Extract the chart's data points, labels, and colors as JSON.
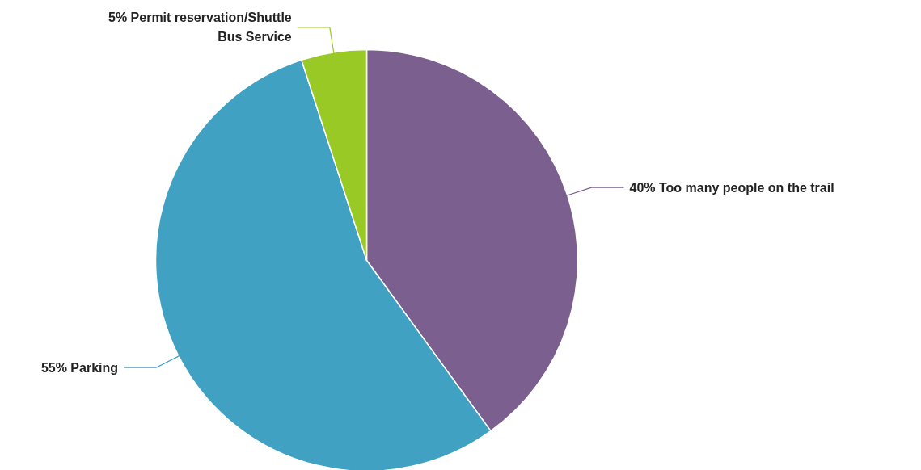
{
  "chart_data": {
    "type": "pie",
    "categories": [
      "40% Too many people on the trail",
      "55% Parking",
      "5% Permit reservation/Shuttle Bus Service"
    ],
    "values": [
      40,
      55,
      5
    ],
    "colors": [
      "#7b5f8e",
      "#41a1c2",
      "#99c925"
    ]
  }
}
